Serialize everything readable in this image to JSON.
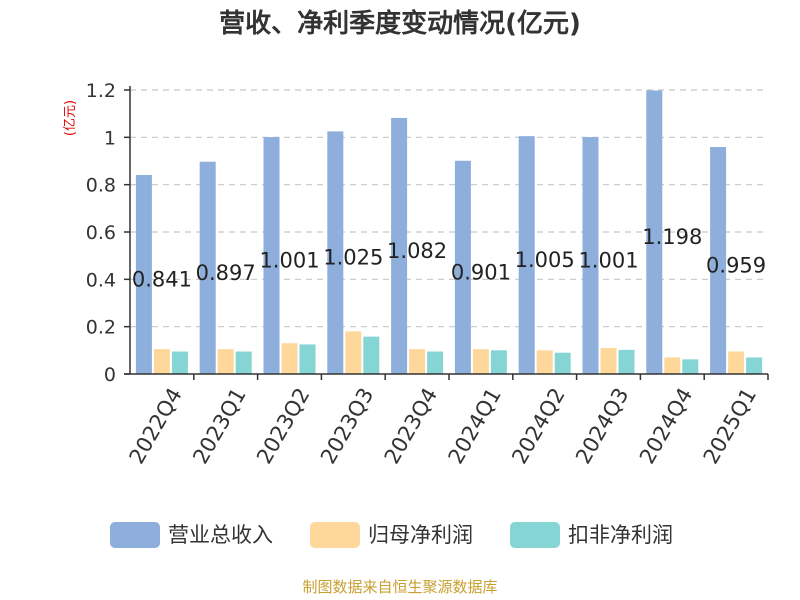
{
  "chart_data": {
    "type": "bar",
    "title": "营收、净利季度变动情况(亿元)",
    "ylabel": "(亿元)",
    "ylim": [
      0,
      1.2
    ],
    "yticks": [
      0,
      0.2,
      0.4,
      0.6,
      0.8,
      1,
      1.2
    ],
    "grid": true,
    "legend_position": "bottom",
    "categories": [
      "2022Q4",
      "2023Q1",
      "2023Q2",
      "2023Q3",
      "2023Q4",
      "2024Q1",
      "2024Q2",
      "2024Q3",
      "2024Q4",
      "2025Q1"
    ],
    "series": [
      {
        "name": "营业总收入",
        "color": "#8eaedc",
        "values": [
          0.841,
          0.897,
          1.001,
          1.025,
          1.082,
          0.901,
          1.005,
          1.001,
          1.198,
          0.959
        ],
        "labels": [
          "0.841",
          "0.897",
          "1.001",
          "1.025",
          "1.082",
          "0.901",
          "1.005",
          "1.001",
          "1.198",
          "0.959"
        ]
      },
      {
        "name": "归母净利润",
        "color": "#fdd89a",
        "values": [
          0.105,
          0.105,
          0.13,
          0.18,
          0.105,
          0.105,
          0.1,
          0.11,
          0.07,
          0.095
        ]
      },
      {
        "name": "扣非净利润",
        "color": "#86d5d5",
        "values": [
          0.095,
          0.095,
          0.125,
          0.158,
          0.095,
          0.1,
          0.09,
          0.102,
          0.062,
          0.07
        ]
      }
    ]
  },
  "source_note": "制图数据来自恒生聚源数据库"
}
